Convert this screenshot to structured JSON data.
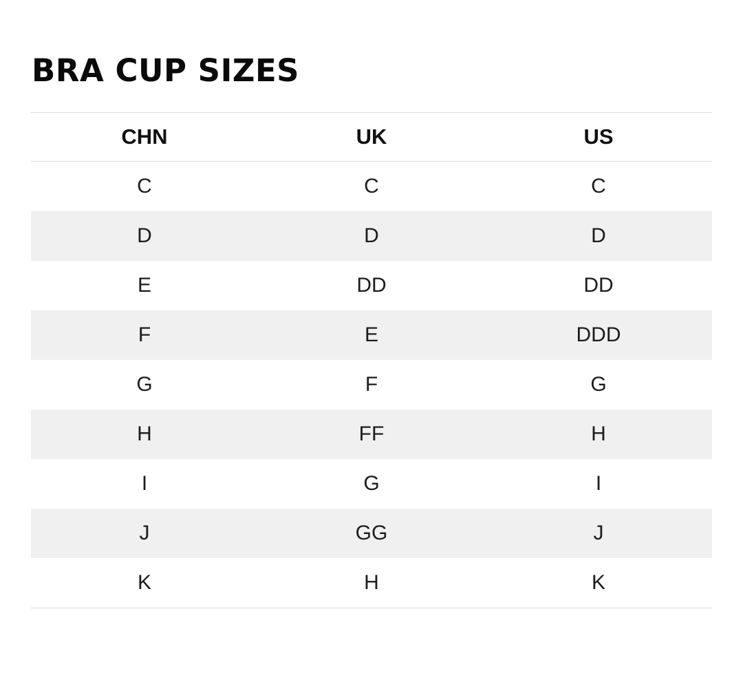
{
  "title": "BRA CUP SIZES",
  "table": {
    "columns": [
      "CHN",
      "UK",
      "US"
    ],
    "rows": [
      [
        "C",
        "C",
        "C"
      ],
      [
        "D",
        "D",
        "D"
      ],
      [
        "E",
        "DD",
        "DD"
      ],
      [
        "F",
        "E",
        "DDD"
      ],
      [
        "G",
        "F",
        "G"
      ],
      [
        "H",
        "FF",
        "H"
      ],
      [
        "I",
        "G",
        "I"
      ],
      [
        "J",
        "GG",
        "J"
      ],
      [
        "K",
        "H",
        "K"
      ]
    ]
  },
  "colors": {
    "stripe": "#f0f0f0",
    "rule": "#dcdcdc",
    "title_text": "#0a0a0a",
    "cell_text": "#1c1c1c",
    "background": "#ffffff"
  }
}
